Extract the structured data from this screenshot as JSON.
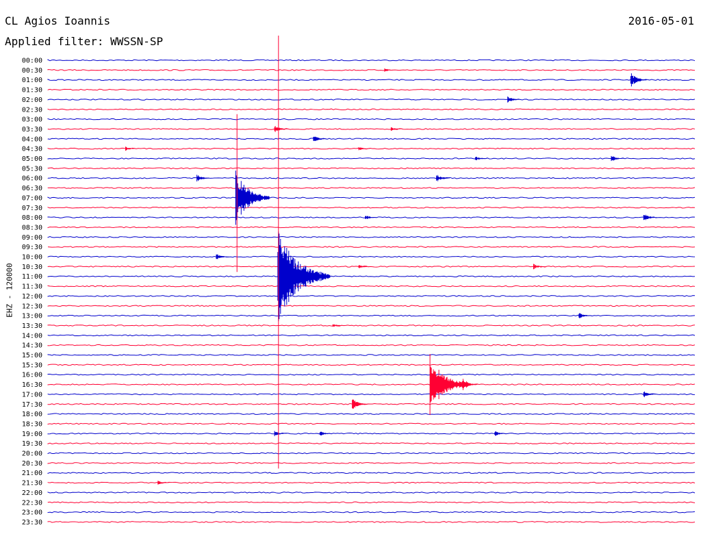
{
  "header": {
    "station": "CL Agios Ioannis",
    "date": "2016-05-01",
    "filter": "Applied filter: WWSSN-SP"
  },
  "chart_data": {
    "type": "line",
    "title": "CL Agios Ioannis",
    "subtitle": "Applied filter: WWSSN-SP",
    "date": "2016-05-01",
    "ylabel": "EHZ - 120000",
    "xlabel": "",
    "grid": false,
    "trace_colors": [
      "#0000cc",
      "#ff0033"
    ],
    "row_minutes": 30,
    "rows": [
      "00:00",
      "00:30",
      "01:00",
      "01:30",
      "02:00",
      "02:30",
      "03:00",
      "03:30",
      "04:00",
      "04:30",
      "05:00",
      "05:30",
      "06:00",
      "06:30",
      "07:00",
      "07:30",
      "08:00",
      "08:30",
      "09:00",
      "09:30",
      "10:00",
      "10:30",
      "11:00",
      "11:30",
      "12:00",
      "12:30",
      "13:00",
      "13:30",
      "14:00",
      "14:30",
      "15:00",
      "15:30",
      "16:00",
      "16:30",
      "17:00",
      "17:30",
      "18:00",
      "18:30",
      "19:00",
      "19:30",
      "20:00",
      "20:30",
      "21:00",
      "21:30",
      "22:00",
      "22:30",
      "23:00",
      "23:30"
    ],
    "events": [
      {
        "row": 1,
        "pos": 0.52,
        "amp": 3
      },
      {
        "row": 2,
        "pos": 0.9,
        "amp": 11
      },
      {
        "row": 4,
        "pos": 0.71,
        "amp": 5
      },
      {
        "row": 7,
        "pos": 0.35,
        "amp": 6
      },
      {
        "row": 7,
        "pos": 0.53,
        "amp": 3
      },
      {
        "row": 8,
        "pos": 0.41,
        "amp": 6
      },
      {
        "row": 9,
        "pos": 0.12,
        "amp": 3
      },
      {
        "row": 9,
        "pos": 0.48,
        "amp": 3
      },
      {
        "row": 10,
        "pos": 0.66,
        "amp": 4
      },
      {
        "row": 10,
        "pos": 0.87,
        "amp": 5
      },
      {
        "row": 12,
        "pos": 0.23,
        "amp": 6
      },
      {
        "row": 12,
        "pos": 0.6,
        "amp": 6
      },
      {
        "row": 14,
        "pos": 0.29,
        "amp": 40
      },
      {
        "row": 16,
        "pos": 0.49,
        "amp": 4
      },
      {
        "row": 16,
        "pos": 0.92,
        "amp": 6
      },
      {
        "row": 20,
        "pos": 0.26,
        "amp": 5
      },
      {
        "row": 21,
        "pos": 0.48,
        "amp": 4
      },
      {
        "row": 21,
        "pos": 0.75,
        "amp": 4
      },
      {
        "row": 22,
        "pos": 0.355,
        "amp": 70
      },
      {
        "row": 26,
        "pos": 0.82,
        "amp": 5
      },
      {
        "row": 27,
        "pos": 0.44,
        "amp": 3
      },
      {
        "row": 33,
        "pos": 0.59,
        "amp": 45
      },
      {
        "row": 33,
        "pos": 0.64,
        "amp": 10
      },
      {
        "row": 34,
        "pos": 0.92,
        "amp": 5
      },
      {
        "row": 35,
        "pos": 0.47,
        "amp": 9
      },
      {
        "row": 38,
        "pos": 0.35,
        "amp": 4
      },
      {
        "row": 38,
        "pos": 0.42,
        "amp": 4
      },
      {
        "row": 38,
        "pos": 0.69,
        "amp": 4
      },
      {
        "row": 43,
        "pos": 0.17,
        "amp": 3
      }
    ],
    "long_spikes": [
      {
        "row": 13,
        "pos": 0.292,
        "top_row": 8,
        "bottom_row": 21
      },
      {
        "row": 23,
        "pos": 0.356,
        "top_row": 0,
        "bottom_row": 41
      }
    ]
  }
}
